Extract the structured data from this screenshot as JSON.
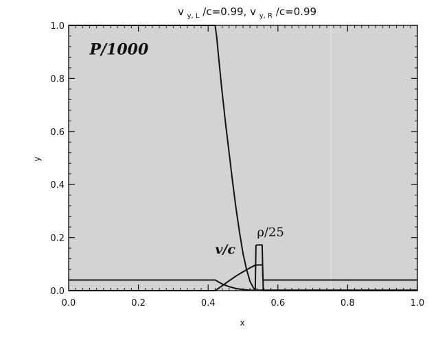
{
  "chart_data": {
    "type": "line",
    "title": {
      "v1": "v",
      "s1": "y, L",
      "r1": "/c=0.99,  ",
      "v2": "v",
      "s2": "y, R",
      "r2": "/c=0.99"
    },
    "xlabel": "x",
    "ylabel": "y",
    "xlim": [
      0.0,
      1.0
    ],
    "ylim": [
      0.0,
      1.0
    ],
    "xticks": [
      "0.0",
      "0.2",
      "0.4",
      "0.6",
      "0.8",
      "1.0"
    ],
    "yticks": [
      "0.0",
      "0.2",
      "0.4",
      "0.6",
      "0.8",
      "1.0"
    ],
    "grid": false,
    "background_color": "#d3d3d3",
    "line_color": "#111111",
    "series": [
      {
        "label": "P/1000",
        "x": [
          0.0,
          0.42,
          0.425,
          0.43,
          0.44,
          0.45,
          0.46,
          0.47,
          0.48,
          0.49,
          0.5,
          0.51,
          0.52,
          0.53,
          0.535,
          0.54,
          1.0
        ],
        "y": [
          1.0,
          1.0,
          0.95,
          0.88,
          0.75,
          0.63,
          0.52,
          0.41,
          0.31,
          0.22,
          0.14,
          0.08,
          0.035,
          0.01,
          0.003,
          0.002,
          0.002
        ]
      },
      {
        "label": "v/c",
        "x": [
          0.0,
          0.42,
          0.44,
          0.46,
          0.48,
          0.5,
          0.52,
          0.535,
          0.538,
          0.545,
          0.556,
          0.558,
          1.0
        ],
        "y": [
          0.0,
          0.0,
          0.018,
          0.037,
          0.055,
          0.071,
          0.086,
          0.096,
          0.096,
          0.097,
          0.097,
          0.0,
          0.0
        ]
      },
      {
        "label": "ρ/25",
        "x": [
          0.0,
          0.42,
          0.44,
          0.46,
          0.48,
          0.5,
          0.52,
          0.535,
          0.537,
          0.539,
          0.555,
          0.557,
          0.56,
          1.0
        ],
        "y": [
          0.04,
          0.04,
          0.025,
          0.015,
          0.008,
          0.004,
          0.002,
          0.001,
          0.17,
          0.172,
          0.172,
          0.04,
          0.04,
          0.04
        ]
      }
    ],
    "annotations": [
      {
        "text": "P/1000",
        "x": 0.06,
        "y": 0.89,
        "style": "bold-italic"
      },
      {
        "text": "v/c",
        "x": 0.42,
        "y": 0.14,
        "style": "bold-italic"
      },
      {
        "text": "ρ/25",
        "x": 0.54,
        "y": 0.205,
        "style": "serif"
      }
    ]
  }
}
